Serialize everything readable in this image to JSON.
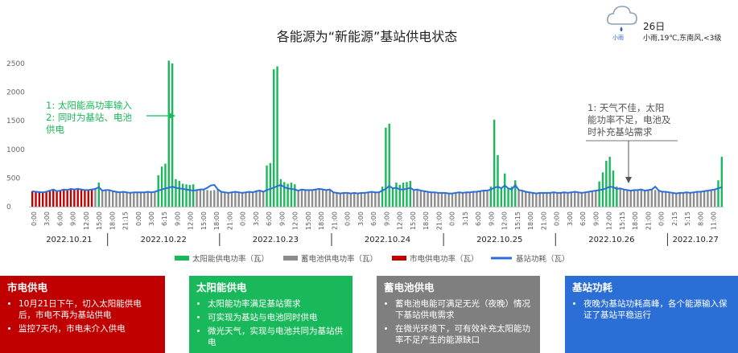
{
  "weather": {
    "icon": "cloud-rain-icon",
    "label": "小雨",
    "temp": "26日",
    "condition": "小雨,19℃,东南风,<3级"
  },
  "annotations": {
    "left": [
      "1: 太阳能高功率输入",
      "2: 同时为基站、电池",
      "供电"
    ],
    "right": [
      "1: 天气不佳，太阳",
      "能功率不足，电池及",
      "时补充基站需求"
    ]
  },
  "panels": [
    {
      "title": "市电供电",
      "color": "#c00000",
      "items": [
        "10月21日下午，切入太阳能供电后，市电不再为基站供电",
        "监控7天内，市电未介入供电"
      ]
    },
    {
      "title": "太阳能供电",
      "color": "#19b85a",
      "items": [
        "太阳能功率满足基站需求",
        "可实现为基站与电池同时供电",
        "微光天气，实现与电池共同为基站供电"
      ]
    },
    {
      "title": "蓄电池供电",
      "color": "#7f7f7f",
      "items": [
        "蓄电池电能可满足无光（夜晚）情况下基站供电需求",
        "在微光环境下，可有效补充太阳能功率不足产生的能源缺口"
      ]
    },
    {
      "title": "基站功耗",
      "color": "#2b6fd6",
      "items": [
        "夜晚为基站功耗高峰，各个能源输入保证了基站平稳运行"
      ]
    }
  ],
  "chart_data": {
    "type": "bar",
    "title": "各能源为“新能源”基站供电状态",
    "ylim": [
      0,
      2500
    ],
    "yticks": [
      0,
      500,
      1000,
      1500,
      2000,
      2500
    ],
    "grid": false,
    "legend_position": "bottom",
    "colors": {
      "solar": "#19b85a",
      "battery": "#8c8c8c",
      "grid": "#c00000",
      "load": "#2b6fd6"
    },
    "series_names": {
      "solar": "太阳能供电功率（瓦）",
      "battery": "蓄电池供电功率（瓦）",
      "grid": "市电供电功率（瓦）",
      "load": "基站功耗（瓦）"
    },
    "x_tick_labels": [
      "0:00",
      "3:00",
      "6:00",
      "9:00",
      "12:00",
      "15:00",
      "18:00",
      "21:15",
      "0:00",
      "3:00",
      "6:15",
      "9:00",
      "12:00",
      "15:00",
      "18:00",
      "21:00",
      "0:00",
      "3:00",
      "6:00",
      "9:00",
      "12:00",
      "15:00",
      "18:00",
      "21:00",
      "0:00",
      "3:00",
      "6:00",
      "9:00",
      "12:00",
      "15:00",
      "18:00",
      "21:00",
      "0:00",
      "3:15",
      "6:00",
      "9:00",
      "12:00",
      "15:15",
      "18:00",
      "21:00",
      "0:00",
      "3:00",
      "6:00",
      "9:00",
      "12:00",
      "15:15",
      "18:00",
      "21:00",
      "0:00",
      "2:15",
      "5:15",
      "8:00",
      "11:00"
    ],
    "dates": [
      {
        "label": "2022.10.21",
        "start": 0,
        "end": 22
      },
      {
        "label": "2022.10.22",
        "start": 22,
        "end": 54
      },
      {
        "label": "2022.10.23",
        "start": 54,
        "end": 86
      },
      {
        "label": "2022.10.24",
        "start": 86,
        "end": 118
      },
      {
        "label": "2022.10.25",
        "start": 118,
        "end": 150
      },
      {
        "label": "2022.10.26",
        "start": 150,
        "end": 182
      },
      {
        "label": "2022.10.27",
        "start": 182,
        "end": 198
      }
    ],
    "source": [
      [
        "grid",
        270
      ],
      [
        "grid",
        260
      ],
      [
        "grid",
        255
      ],
      [
        "grid",
        250
      ],
      [
        "grid",
        260
      ],
      [
        "grid",
        280
      ],
      [
        "grid",
        300
      ],
      [
        "grid",
        270
      ],
      [
        "grid",
        280
      ],
      [
        "grid",
        300
      ],
      [
        "grid",
        290
      ],
      [
        "grid",
        310
      ],
      [
        "grid",
        300
      ],
      [
        "grid",
        310
      ],
      [
        "grid",
        300
      ],
      [
        "grid",
        290
      ],
      [
        "grid",
        290
      ],
      [
        "grid",
        300
      ],
      [
        "battery",
        310
      ],
      [
        "solar",
        420
      ],
      [
        "battery",
        280
      ],
      [
        "battery",
        290
      ],
      [
        "battery",
        290
      ],
      [
        "battery",
        270
      ],
      [
        "battery",
        260
      ],
      [
        "battery",
        250
      ],
      [
        "battery",
        260
      ],
      [
        "battery",
        250
      ],
      [
        "battery",
        240
      ],
      [
        "battery",
        250
      ],
      [
        "battery",
        250
      ],
      [
        "battery",
        250
      ],
      [
        "battery",
        250
      ],
      [
        "battery",
        260
      ],
      [
        "battery",
        250
      ],
      [
        "battery",
        260
      ],
      [
        "solar",
        550
      ],
      [
        "solar",
        700
      ],
      [
        "solar",
        750
      ],
      [
        "solar",
        2550
      ],
      [
        "solar",
        2500
      ],
      [
        "solar",
        480
      ],
      [
        "solar",
        450
      ],
      [
        "solar",
        400
      ],
      [
        "solar",
        390
      ],
      [
        "solar",
        380
      ],
      [
        "solar",
        390
      ],
      [
        "battery",
        300
      ],
      [
        "battery",
        310
      ],
      [
        "battery",
        300
      ],
      [
        "battery",
        290
      ],
      [
        "battery",
        280
      ],
      [
        "battery",
        290
      ],
      [
        "battery",
        300
      ],
      [
        "battery",
        260
      ],
      [
        "battery",
        250
      ],
      [
        "battery",
        240
      ],
      [
        "battery",
        250
      ],
      [
        "battery",
        260
      ],
      [
        "battery",
        250
      ],
      [
        "battery",
        240
      ],
      [
        "battery",
        250
      ],
      [
        "battery",
        260
      ],
      [
        "battery",
        250
      ],
      [
        "battery",
        270
      ],
      [
        "battery",
        280
      ],
      [
        "battery",
        260
      ],
      [
        "solar",
        720
      ],
      [
        "solar",
        760
      ],
      [
        "solar",
        2400
      ],
      [
        "solar",
        2450
      ],
      [
        "solar",
        480
      ],
      [
        "solar",
        430
      ],
      [
        "solar",
        400
      ],
      [
        "solar",
        420
      ],
      [
        "solar",
        390
      ],
      [
        "battery",
        280
      ],
      [
        "battery",
        300
      ],
      [
        "battery",
        290
      ],
      [
        "battery",
        290
      ],
      [
        "battery",
        290
      ],
      [
        "battery",
        300
      ],
      [
        "battery",
        310
      ],
      [
        "battery",
        300
      ],
      [
        "battery",
        290
      ],
      [
        "battery",
        300
      ],
      [
        "battery",
        250
      ],
      [
        "battery",
        240
      ],
      [
        "battery",
        230
      ],
      [
        "battery",
        240
      ],
      [
        "battery",
        240
      ],
      [
        "battery",
        230
      ],
      [
        "battery",
        240
      ],
      [
        "battery",
        230
      ],
      [
        "battery",
        240
      ],
      [
        "battery",
        240
      ],
      [
        "battery",
        250
      ],
      [
        "battery",
        260
      ],
      [
        "battery",
        250
      ],
      [
        "battery",
        250
      ],
      [
        "solar",
        350
      ],
      [
        "solar",
        1380
      ],
      [
        "solar",
        1450
      ],
      [
        "solar",
        320
      ],
      [
        "solar",
        420
      ],
      [
        "solar",
        380
      ],
      [
        "solar",
        420
      ],
      [
        "solar",
        430
      ],
      [
        "solar",
        450
      ],
      [
        "battery",
        290
      ],
      [
        "battery",
        300
      ],
      [
        "battery",
        280
      ],
      [
        "battery",
        270
      ],
      [
        "battery",
        260
      ],
      [
        "battery",
        250
      ],
      [
        "battery",
        250
      ],
      [
        "battery",
        240
      ],
      [
        "battery",
        240
      ],
      [
        "battery",
        240
      ],
      [
        "battery",
        230
      ],
      [
        "battery",
        230
      ],
      [
        "battery",
        240
      ],
      [
        "battery",
        250
      ],
      [
        "battery",
        240
      ],
      [
        "battery",
        250
      ],
      [
        "battery",
        250
      ],
      [
        "battery",
        260
      ],
      [
        "battery",
        260
      ],
      [
        "battery",
        270
      ],
      [
        "battery",
        280
      ],
      [
        "battery",
        280
      ],
      [
        "solar",
        350
      ],
      [
        "solar",
        1520
      ],
      [
        "solar",
        900
      ],
      [
        "solar",
        340
      ],
      [
        "solar",
        580
      ],
      [
        "solar",
        320
      ],
      [
        "solar",
        350
      ],
      [
        "solar",
        460
      ],
      [
        "battery",
        290
      ],
      [
        "battery",
        280
      ],
      [
        "battery",
        260
      ],
      [
        "battery",
        250
      ],
      [
        "battery",
        240
      ],
      [
        "battery",
        230
      ],
      [
        "battery",
        240
      ],
      [
        "battery",
        240
      ],
      [
        "battery",
        240
      ],
      [
        "battery",
        240
      ],
      [
        "battery",
        250
      ],
      [
        "battery",
        240
      ],
      [
        "battery",
        240
      ],
      [
        "battery",
        250
      ],
      [
        "battery",
        240
      ],
      [
        "battery",
        250
      ],
      [
        "battery",
        260
      ],
      [
        "battery",
        250
      ],
      [
        "battery",
        240
      ],
      [
        "battery",
        250
      ],
      [
        "battery",
        260
      ],
      [
        "battery",
        270
      ],
      [
        "battery",
        280
      ],
      [
        "solar",
        440
      ],
      [
        "solar",
        600
      ],
      [
        "solar",
        800
      ],
      [
        "solar",
        870
      ],
      [
        "solar",
        630
      ],
      [
        "solar",
        350
      ],
      [
        "battery",
        320
      ],
      [
        "battery",
        300
      ],
      [
        "battery",
        290
      ],
      [
        "battery",
        280
      ],
      [
        "battery",
        290
      ],
      [
        "battery",
        290
      ],
      [
        "battery",
        300
      ],
      [
        "battery",
        280
      ],
      [
        "battery",
        290
      ],
      [
        "battery",
        300
      ],
      [
        "battery",
        290
      ],
      [
        "battery",
        280
      ],
      [
        "battery",
        260
      ],
      [
        "battery",
        260
      ],
      [
        "battery",
        250
      ],
      [
        "battery",
        240
      ],
      [
        "battery",
        230
      ],
      [
        "battery",
        240
      ],
      [
        "battery",
        240
      ],
      [
        "battery",
        250
      ],
      [
        "battery",
        240
      ],
      [
        "battery",
        250
      ],
      [
        "battery",
        260
      ],
      [
        "battery",
        260
      ],
      [
        "battery",
        270
      ],
      [
        "battery",
        280
      ],
      [
        "battery",
        290
      ],
      [
        "battery",
        300
      ],
      [
        "solar",
        460
      ],
      [
        "solar",
        870
      ]
    ],
    "load": [
      270,
      260,
      255,
      250,
      260,
      280,
      300,
      270,
      280,
      300,
      290,
      310,
      300,
      310,
      300,
      290,
      290,
      300,
      310,
      340,
      280,
      290,
      290,
      270,
      260,
      250,
      260,
      250,
      240,
      250,
      250,
      250,
      250,
      260,
      250,
      260,
      280,
      300,
      320,
      330,
      350,
      330,
      320,
      310,
      300,
      290,
      280,
      290,
      300,
      300,
      330,
      370,
      380,
      300,
      260,
      250,
      240,
      250,
      260,
      250,
      240,
      250,
      260,
      250,
      270,
      280,
      260,
      290,
      310,
      330,
      360,
      380,
      340,
      320,
      310,
      300,
      280,
      300,
      290,
      290,
      290,
      300,
      310,
      300,
      290,
      300,
      250,
      240,
      230,
      240,
      240,
      230,
      240,
      230,
      240,
      240,
      250,
      260,
      250,
      250,
      280,
      310,
      360,
      320,
      330,
      300,
      300,
      310,
      330,
      290,
      300,
      280,
      270,
      260,
      250,
      250,
      240,
      240,
      240,
      230,
      230,
      240,
      250,
      240,
      250,
      250,
      260,
      260,
      270,
      280,
      280,
      300,
      330,
      350,
      320,
      370,
      320,
      300,
      380,
      290,
      280,
      260,
      250,
      240,
      230,
      240,
      240,
      240,
      240,
      250,
      240,
      240,
      250,
      240,
      250,
      260,
      250,
      240,
      250,
      260,
      270,
      280,
      290,
      300,
      320,
      350,
      340,
      310,
      320,
      300,
      290,
      280,
      290,
      290,
      300,
      280,
      290,
      300,
      350,
      280,
      260,
      260,
      250,
      240,
      230,
      240,
      240,
      250,
      240,
      250,
      260,
      260,
      270,
      280,
      290,
      300,
      320,
      340
    ]
  }
}
